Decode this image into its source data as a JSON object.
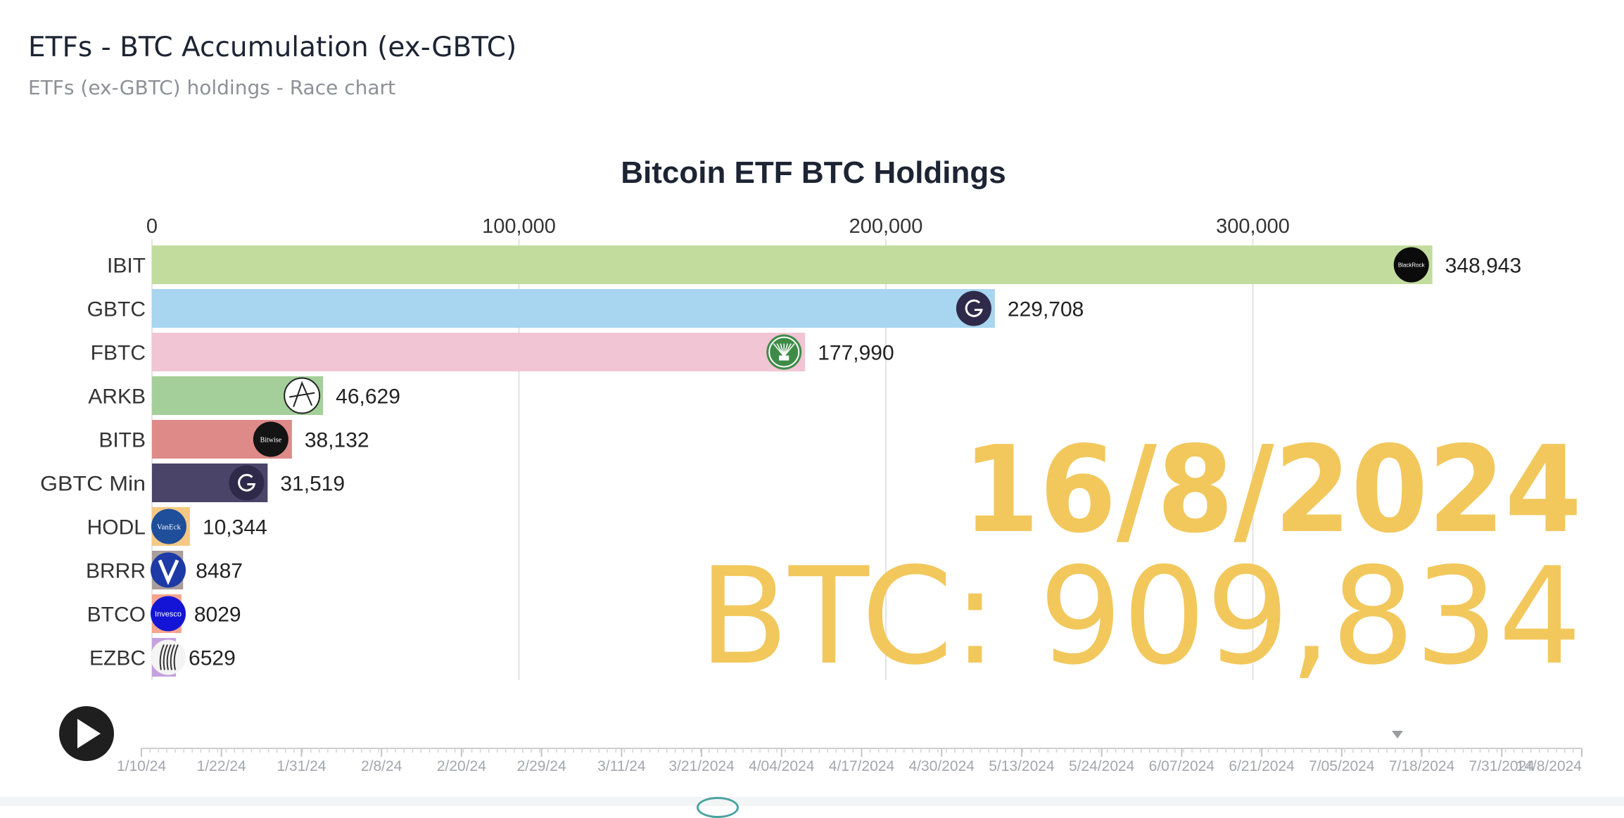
{
  "header": {
    "title": "ETFs - BTC Accumulation (ex-GBTC)",
    "subtitle": "ETFs (ex-GBTC) holdings - Race chart"
  },
  "chart_data": {
    "type": "bar",
    "orientation": "horizontal",
    "title": "Bitcoin ETF BTC Holdings",
    "xlabel": "",
    "ylabel": "",
    "xlim": [
      0,
      390000
    ],
    "x_ticks": [
      0,
      100000,
      200000,
      300000
    ],
    "x_tick_labels": [
      "0",
      "100,000",
      "200,000",
      "300,000"
    ],
    "grid": true,
    "categories": [
      "IBIT",
      "GBTC",
      "FBTC",
      "ARKB",
      "BITB",
      "GBTC Min",
      "HODL",
      "BRRR",
      "BTCO",
      "EZBC"
    ],
    "values": [
      348943,
      229708,
      177990,
      46629,
      38132,
      31519,
      10344,
      8487,
      8029,
      6529
    ],
    "value_labels": [
      "348,943",
      "229,708",
      "177,990",
      "46,629",
      "38,132",
      "31,519",
      "10,344",
      "8487",
      "8029",
      "6529"
    ],
    "colors": [
      "#c2dc9e",
      "#a8d5f0",
      "#f1c5d4",
      "#a4cf9a",
      "#dd8a89",
      "#4a4469",
      "#f5c984",
      "#a99e9b",
      "#f5a58c",
      "#c5a1dd"
    ],
    "logo_icons": [
      "blackrock-logo-icon",
      "grayscale-logo-icon",
      "fidelity-logo-icon",
      "ark-logo-icon",
      "bitwise-logo-icon",
      "grayscale-logo-icon",
      "vaneck-logo-icon",
      "valkyrie-logo-icon",
      "invesco-logo-icon",
      "franklin-logo-icon"
    ],
    "logo_text": {
      "IBIT": "BlackRock",
      "BITB": "Bitwise",
      "HODL": "VanEck",
      "BTCO": "Invesco"
    },
    "overlay_date": "16/8/2024",
    "overlay_total": "BTC: 909,834",
    "overlay_color": "#f2c85c",
    "timeline": {
      "labels": [
        "1/10/24",
        "1/22/24",
        "1/31/24",
        "2/8/24",
        "2/20/24",
        "2/29/24",
        "3/11/24",
        "3/21/2024",
        "4/04/2024",
        "4/17/2024",
        "4/30/2024",
        "5/13/2024",
        "5/24/2024",
        "6/07/2024",
        "6/21/2024",
        "7/05/2024",
        "7/18/2024",
        "7/31/2024",
        "14/8/2024"
      ],
      "current_position": 0.872,
      "play_icon": "play-icon"
    }
  }
}
